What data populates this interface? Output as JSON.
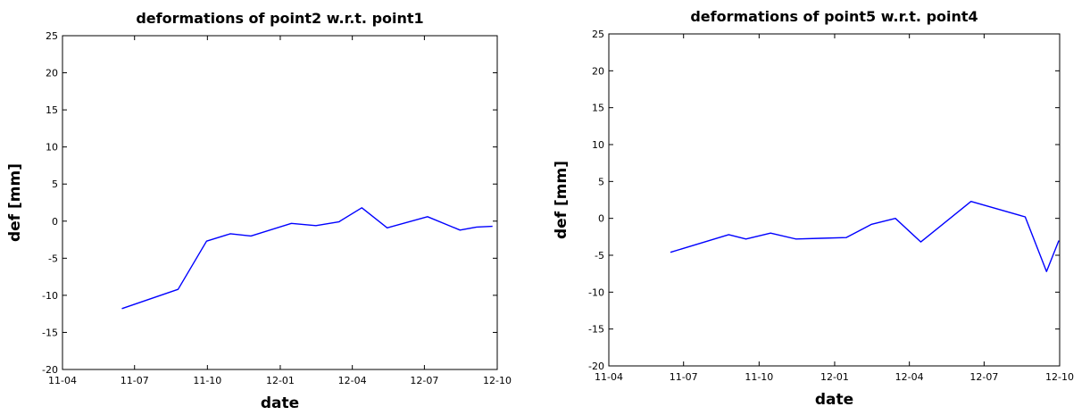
{
  "chart_data": [
    {
      "type": "line",
      "title": "deformations of point2 w.r.t. point1",
      "xlabel": "date",
      "ylabel": "def [mm]",
      "xlim": [
        "2011-04-01",
        "2012-10-01"
      ],
      "ylim": [
        -20,
        25
      ],
      "xticks": [
        "11-04",
        "11-07",
        "11-10",
        "12-01",
        "12-04",
        "12-07",
        "12-10"
      ],
      "yticks": [
        -20,
        -15,
        -10,
        -5,
        0,
        5,
        10,
        15,
        20,
        25
      ],
      "grid": false,
      "color": "#0000ff",
      "x": [
        "2011-06-15",
        "2011-08-25",
        "2011-09-30",
        "2011-10-30",
        "2011-11-25",
        "2012-01-15",
        "2012-02-15",
        "2012-03-15",
        "2012-04-13",
        "2012-05-15",
        "2012-07-05",
        "2012-08-15",
        "2012-09-05",
        "2012-09-25"
      ],
      "values": [
        -11.8,
        -9.2,
        -2.7,
        -1.7,
        -2.0,
        -0.3,
        -0.6,
        -0.1,
        1.8,
        -0.9,
        0.6,
        -1.2,
        -0.8,
        -0.7
      ]
    },
    {
      "type": "line",
      "title": "deformations of point5 w.r.t. point4",
      "xlabel": "date",
      "ylabel": "def [mm]",
      "xlim": [
        "2011-04-01",
        "2012-10-01"
      ],
      "ylim": [
        -20,
        25
      ],
      "xticks": [
        "11-04",
        "11-07",
        "11-10",
        "12-01",
        "12-04",
        "12-07",
        "12-10"
      ],
      "yticks": [
        -20,
        -15,
        -10,
        -5,
        0,
        5,
        10,
        15,
        20,
        25
      ],
      "grid": false,
      "color": "#0000ff",
      "x": [
        "2011-06-15",
        "2011-08-25",
        "2011-09-15",
        "2011-10-15",
        "2011-11-15",
        "2011-12-15",
        "2012-01-15",
        "2012-02-15",
        "2012-03-15",
        "2012-04-15",
        "2012-06-15",
        "2012-08-20",
        "2012-09-15",
        "2012-09-30"
      ],
      "values": [
        -4.6,
        -2.2,
        -2.8,
        -2.0,
        -2.8,
        -2.7,
        -2.6,
        -0.8,
        0.0,
        -3.2,
        2.3,
        0.2,
        -7.2,
        -3.0
      ]
    }
  ]
}
